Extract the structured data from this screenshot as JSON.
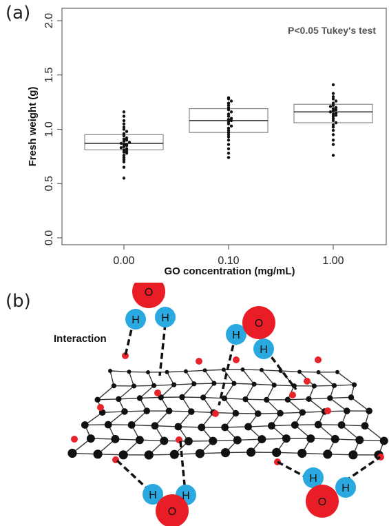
{
  "panel_a": {
    "label": "(a)",
    "chart_data": {
      "type": "box",
      "xlabel": "GO concentration (mg/mL)",
      "ylabel": "Fresh weight (g)",
      "categories": [
        "0.00",
        "0.10",
        "1.00"
      ],
      "ylim": [
        0.0,
        2.0
      ],
      "yticks": [
        "0.0",
        "0.5",
        "1.0",
        "1.5",
        "2.0"
      ],
      "annotation": "P<0.05    Tukey's test",
      "boxes": [
        {
          "category": "0.00",
          "q1": 0.81,
          "median": 0.87,
          "q3": 0.95,
          "points": [
            0.55,
            0.65,
            0.7,
            0.72,
            0.74,
            0.76,
            0.78,
            0.79,
            0.8,
            0.81,
            0.82,
            0.83,
            0.84,
            0.85,
            0.86,
            0.86,
            0.87,
            0.88,
            0.89,
            0.9,
            0.91,
            0.92,
            0.94,
            0.96,
            0.98,
            1.0,
            1.02,
            1.05,
            1.08,
            1.12,
            1.16
          ]
        },
        {
          "category": "0.10",
          "q1": 0.97,
          "median": 1.08,
          "q3": 1.19,
          "points": [
            0.74,
            0.78,
            0.82,
            0.86,
            0.9,
            0.93,
            0.95,
            0.97,
            0.99,
            1.01,
            1.03,
            1.05,
            1.07,
            1.08,
            1.09,
            1.1,
            1.12,
            1.14,
            1.16,
            1.18,
            1.2,
            1.22,
            1.24,
            1.26,
            1.28,
            1.29
          ]
        },
        {
          "category": "1.00",
          "q1": 1.06,
          "median": 1.16,
          "q3": 1.23,
          "points": [
            0.76,
            0.86,
            0.9,
            0.95,
            0.99,
            1.02,
            1.04,
            1.06,
            1.08,
            1.1,
            1.12,
            1.13,
            1.14,
            1.15,
            1.16,
            1.17,
            1.18,
            1.19,
            1.2,
            1.21,
            1.22,
            1.24,
            1.26,
            1.28,
            1.3,
            1.33,
            1.41
          ]
        }
      ]
    }
  },
  "panel_b": {
    "label": "(b)",
    "interaction_label": "Interaction",
    "atom_o": "O",
    "atom_h": "H",
    "colors": {
      "oxygen": "#e81d25",
      "hydrogen": "#29a9e0",
      "carbon": "#111111",
      "functional_group": "#e8232a"
    }
  }
}
